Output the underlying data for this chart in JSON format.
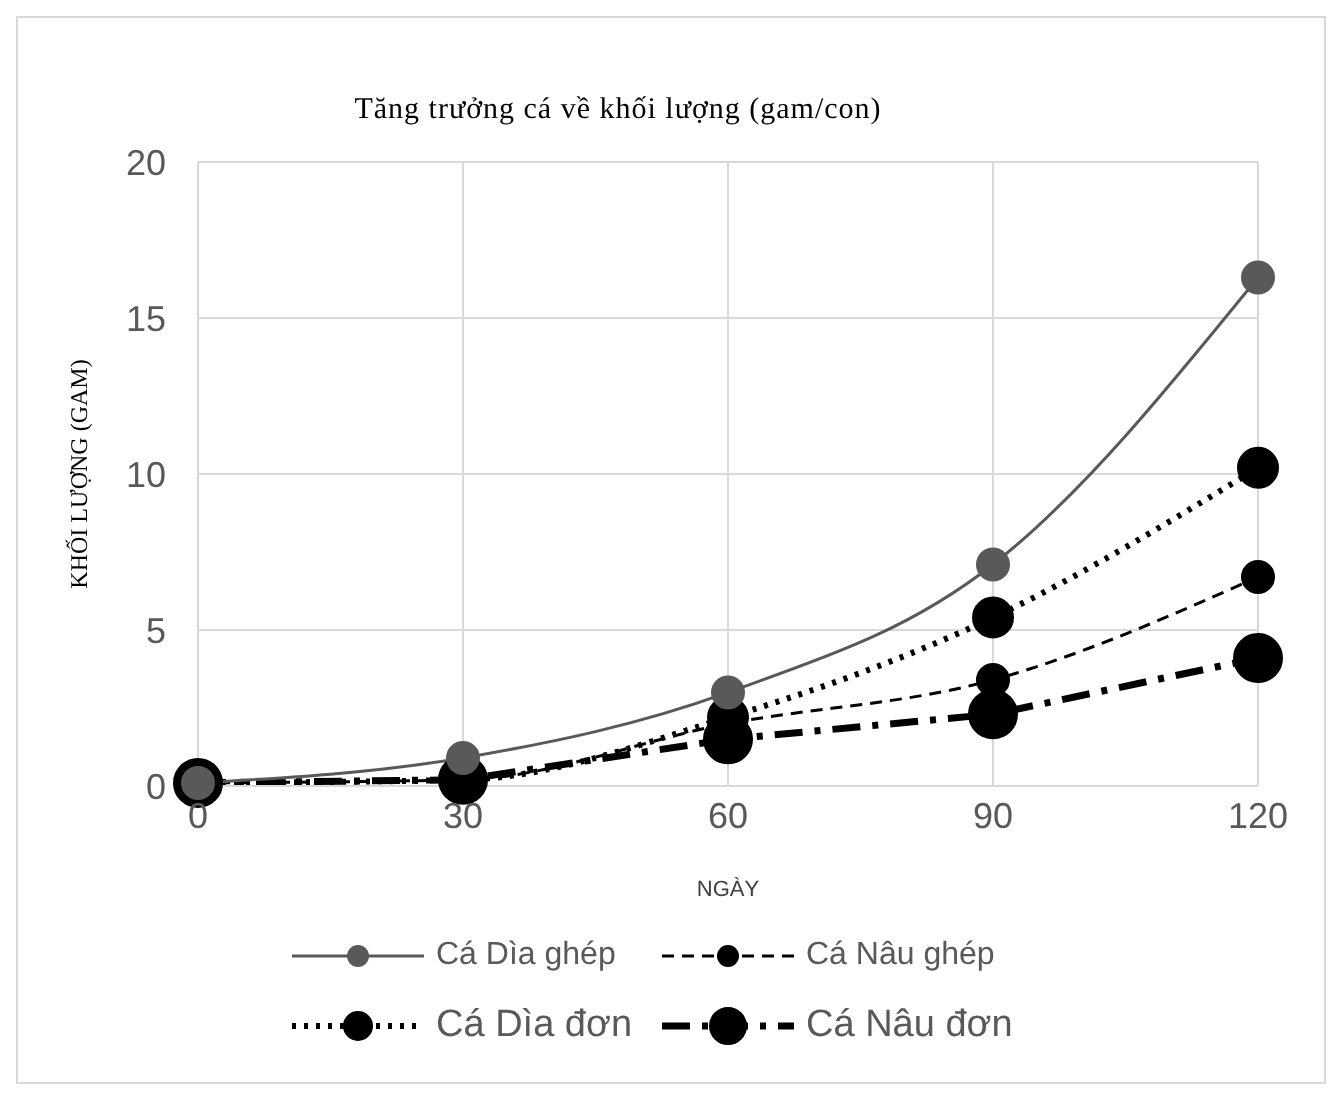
{
  "chart_data": {
    "type": "line",
    "title": "Tăng trưởng cá về khối lượng (gam/con)",
    "xlabel": "NGÀY",
    "ylabel": "KHỐI LƯỢNG (GAM)",
    "x": [
      0,
      30,
      60,
      90,
      120
    ],
    "xlim": [
      0,
      120
    ],
    "xticks": [
      0,
      30,
      60,
      90,
      120
    ],
    "ylim": [
      0,
      20
    ],
    "yticks": [
      0,
      5,
      10,
      15,
      20
    ],
    "grid": true,
    "legend": "bottom",
    "marker": "circle",
    "series": [
      {
        "name": "Cá Dìa ghép",
        "color": "#595959",
        "line_style": "solid",
        "values": [
          0.1,
          0.9,
          3.0,
          7.1,
          16.3
        ]
      },
      {
        "name": "Cá Nâu ghép",
        "color": "#000000",
        "line_style": "dashed",
        "values": [
          0.1,
          0.2,
          2.0,
          3.4,
          6.7
        ]
      },
      {
        "name": "Cá Dìa đơn",
        "color": "#000000",
        "line_style": "dotted",
        "values": [
          0.1,
          0.2,
          2.2,
          5.4,
          10.2
        ]
      },
      {
        "name": "Cá Nâu đơn",
        "color": "#000000",
        "line_style": "dashed",
        "values": [
          0.1,
          0.2,
          1.5,
          2.3,
          4.1
        ]
      }
    ]
  }
}
